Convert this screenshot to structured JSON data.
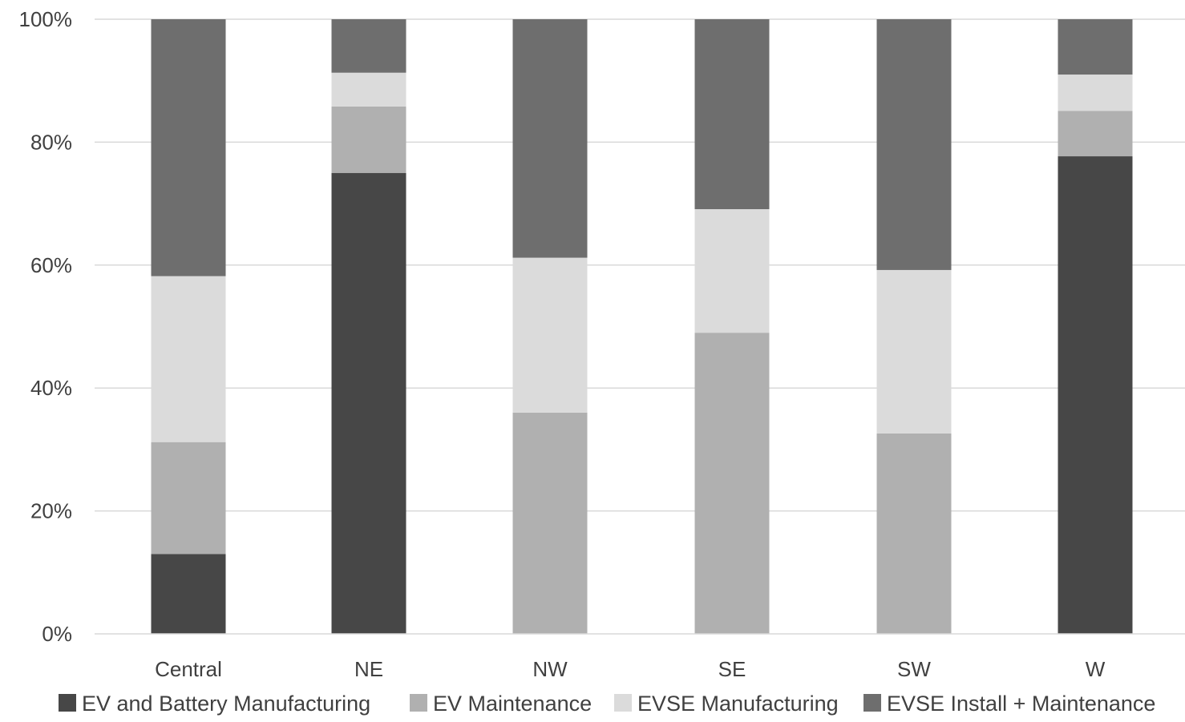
{
  "chart_data": {
    "type": "bar",
    "stacked": true,
    "percent": true,
    "categories": [
      "Central",
      "NE",
      "NW",
      "SE",
      "SW",
      "W"
    ],
    "series": [
      {
        "name": "EV and Battery Manufacturing",
        "color": "#474747",
        "values": [
          13,
          75,
          0,
          0,
          0,
          77.7
        ]
      },
      {
        "name": "EV Maintenance",
        "color": "#b0b0b0",
        "values": [
          18.2,
          10.8,
          36,
          49,
          32.6,
          7.4
        ]
      },
      {
        "name": "EVSE Manufacturing",
        "color": "#dbdbdb",
        "values": [
          27,
          5.5,
          25.2,
          20.1,
          26.6,
          5.9
        ]
      },
      {
        "name": "EVSE Install + Maintenance",
        "color": "#6e6e6e",
        "values": [
          41.8,
          8.7,
          38.8,
          30.9,
          40.8,
          9
        ]
      }
    ],
    "y_ticks": [
      "0%",
      "20%",
      "40%",
      "60%",
      "80%",
      "100%"
    ],
    "ylim": [
      0,
      100
    ],
    "grid": true,
    "legend_position": "bottom"
  }
}
